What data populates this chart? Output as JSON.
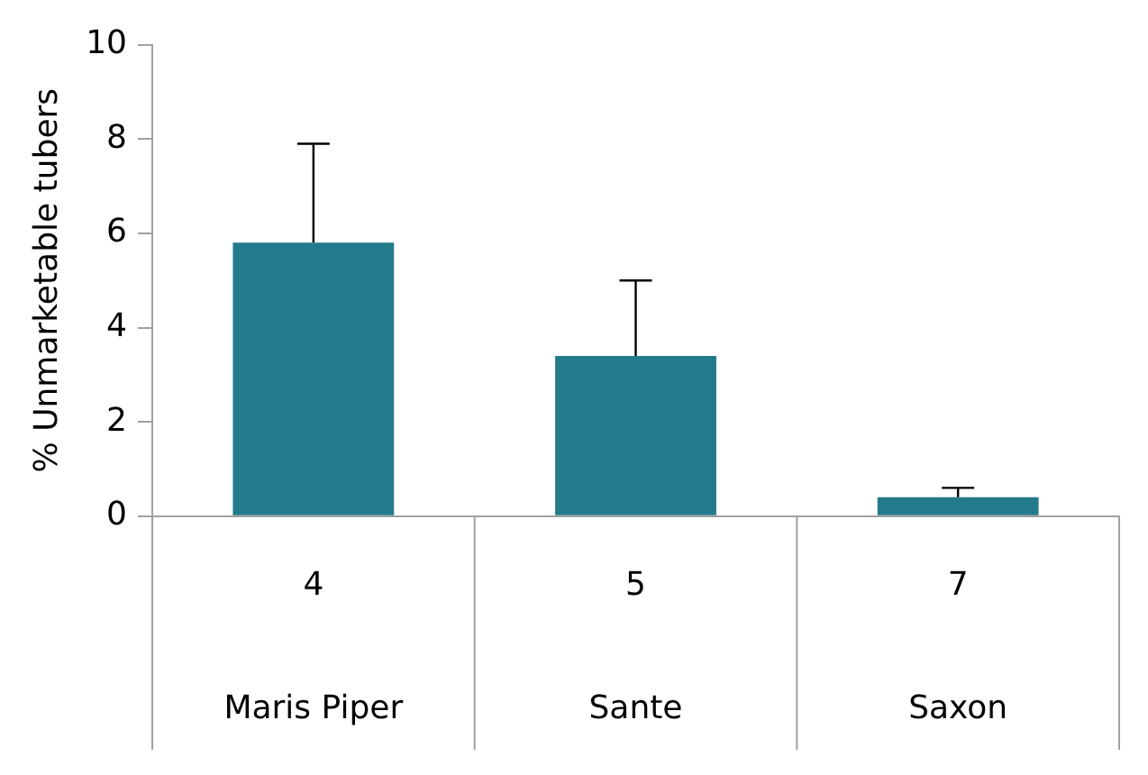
{
  "chart_data": {
    "type": "bar",
    "ylabel": "% Unmarketable tubers",
    "categories": [
      "4",
      "5",
      "7"
    ],
    "values": [
      5.8,
      3.4,
      0.4
    ],
    "color": "#237a8a",
    "errors": [
      [
        5.8,
        7.9
      ],
      [
        3.4,
        5.0
      ],
      [
        0.4,
        0.6
      ]
    ],
    "ylim": [
      0,
      10
    ],
    "yticks": [
      0,
      2,
      4,
      6,
      8,
      10
    ],
    "grid": false,
    "legend": false,
    "annotations": [
      "Maris Piper",
      "Sante",
      "Saxon"
    ]
  }
}
